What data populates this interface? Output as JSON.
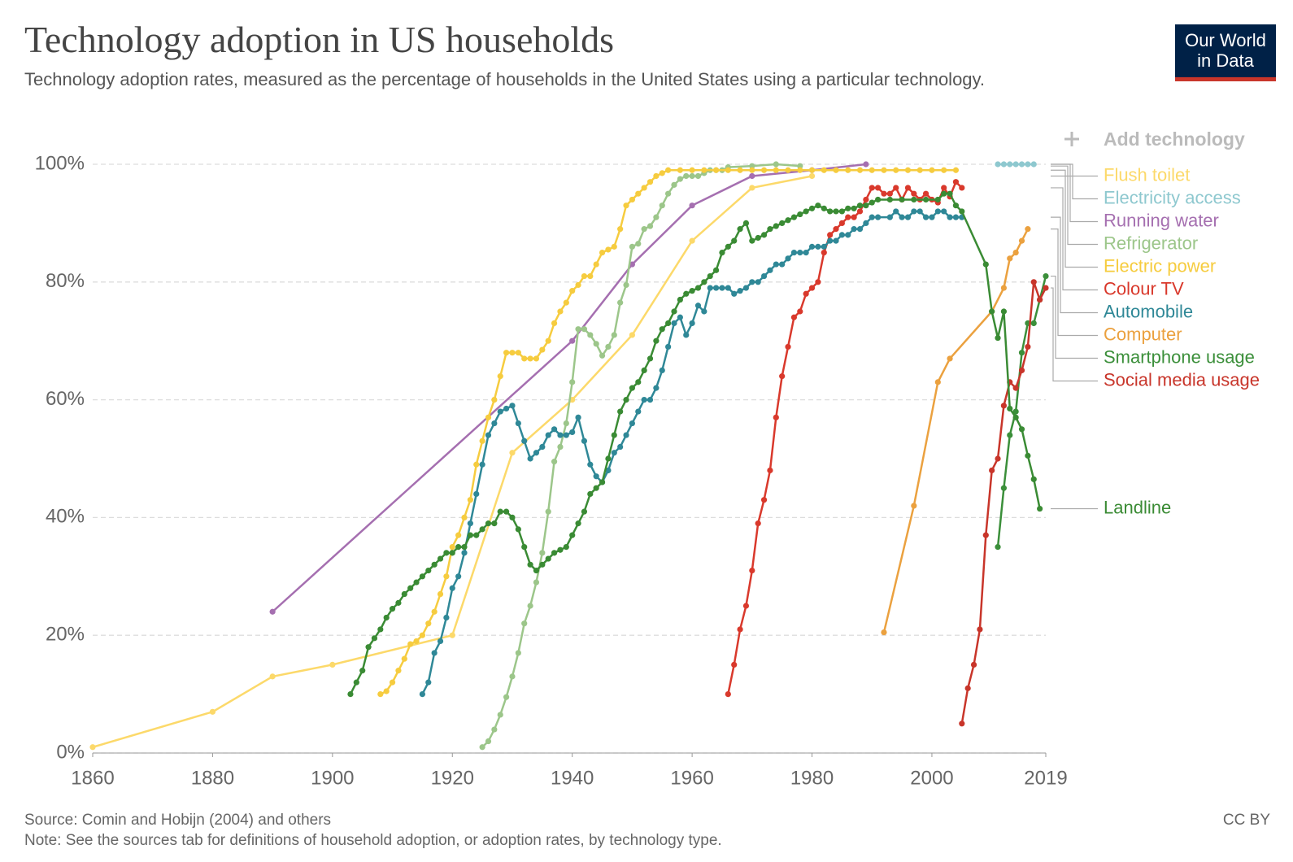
{
  "chart_data": {
    "type": "line",
    "title": "Technology adoption in US households",
    "subtitle": "Technology adoption rates, measured as the percentage of households in the United States using a particular technology.",
    "source": "Source: Comin and Hobijn (2004) and others",
    "note": "Note: See the sources tab for definitions of household adoption, or adoption rates, by technology type.",
    "license": "CC BY",
    "add_button": "Add technology",
    "logo": [
      "Our World",
      "in Data"
    ],
    "xlim": [
      1860,
      2019
    ],
    "xticks": [
      1860,
      1880,
      1900,
      1920,
      1940,
      1960,
      1980,
      2000,
      2019
    ],
    "ylim": [
      0,
      100
    ],
    "yticks": [
      {
        "value": 0,
        "label": "0%"
      },
      {
        "value": 20,
        "label": "20%"
      },
      {
        "value": 40,
        "label": "40%"
      },
      {
        "value": 60,
        "label": "60%"
      },
      {
        "value": 80,
        "label": "80%"
      },
      {
        "value": 100,
        "label": "100%"
      }
    ],
    "grid": true,
    "series": [
      {
        "name": "Flush toilet",
        "color": "#fcd96a",
        "x": [
          1860,
          1880,
          1890,
          1900,
          1920,
          1930,
          1940,
          1950,
          1960,
          1970,
          1980
        ],
        "values": [
          1,
          7,
          13,
          15,
          20,
          51,
          60,
          71,
          87,
          96,
          98
        ]
      },
      {
        "name": "Electricity access",
        "color": "#8ec8cf",
        "x": [
          2011,
          2012,
          2013,
          2014,
          2015,
          2016,
          2017
        ],
        "values": [
          100,
          100,
          100,
          100,
          100,
          100,
          100
        ]
      },
      {
        "name": "Running water",
        "color": "#a56fb0",
        "x": [
          1890,
          1940,
          1950,
          1960,
          1970,
          1980,
          1989
        ],
        "values": [
          24,
          70,
          83,
          93,
          98,
          99,
          100
        ]
      },
      {
        "name": "Refrigerator",
        "color": "#9cc68a",
        "x": [
          1925,
          1926,
          1927,
          1928,
          1929,
          1930,
          1931,
          1932,
          1933,
          1934,
          1935,
          1936,
          1937,
          1938,
          1939,
          1940,
          1941,
          1942,
          1943,
          1944,
          1945,
          1946,
          1947,
          1948,
          1949,
          1950,
          1951,
          1952,
          1953,
          1954,
          1955,
          1956,
          1957,
          1958,
          1959,
          1960,
          1961,
          1962,
          1963,
          1964,
          1965,
          1966,
          1970,
          1974,
          1978
        ],
        "values": [
          1,
          2,
          4,
          6.5,
          9.5,
          13,
          17,
          22,
          25,
          29,
          34,
          41,
          49.5,
          52,
          56,
          63,
          72,
          72,
          71,
          69.5,
          67.5,
          69,
          71,
          76.5,
          79.5,
          86,
          86.5,
          89,
          89.5,
          91,
          93,
          95,
          96.5,
          97.5,
          98,
          98,
          98,
          98.5,
          99,
          99,
          99,
          99.5,
          99.7,
          100,
          99.7
        ]
      },
      {
        "name": "Electric power",
        "color": "#f6cc3f",
        "x": [
          1908,
          1909,
          1910,
          1911,
          1912,
          1913,
          1914,
          1915,
          1916,
          1917,
          1918,
          1919,
          1920,
          1921,
          1922,
          1923,
          1924,
          1925,
          1926,
          1927,
          1928,
          1929,
          1930,
          1931,
          1932,
          1933,
          1934,
          1935,
          1936,
          1937,
          1938,
          1939,
          1940,
          1941,
          1942,
          1943,
          1944,
          1945,
          1946,
          1947,
          1948,
          1949,
          1950,
          1951,
          1952,
          1953,
          1954,
          1955,
          1956,
          1958,
          1960,
          1962,
          1964,
          1966,
          1968,
          1970,
          1972,
          1974,
          1976,
          1978,
          1980,
          1982,
          1984,
          1986,
          1988,
          1990,
          1992,
          1994,
          1996,
          1998,
          2000,
          2002,
          2004
        ],
        "values": [
          10,
          10.5,
          12,
          14,
          16,
          18.5,
          19,
          20,
          22,
          24,
          27,
          30,
          35,
          37,
          40,
          43,
          49,
          53,
          57,
          60,
          64,
          68,
          68,
          68,
          67,
          67,
          67,
          68.5,
          70,
          73,
          75,
          76.5,
          78.5,
          79.5,
          81,
          81,
          83,
          85,
          85.5,
          86,
          89,
          93,
          94,
          95,
          96,
          97,
          98,
          98.5,
          99,
          99,
          99,
          99,
          99,
          99,
          99,
          99,
          99,
          99,
          99,
          99,
          99,
          99,
          99,
          99,
          99,
          99,
          99,
          99,
          99,
          99,
          99,
          99,
          99
        ]
      },
      {
        "name": "Colour TV",
        "color": "#d9392c",
        "x": [
          1966,
          1967,
          1968,
          1969,
          1970,
          1971,
          1972,
          1973,
          1974,
          1975,
          1976,
          1977,
          1978,
          1979,
          1980,
          1981,
          1982,
          1983,
          1984,
          1985,
          1986,
          1987,
          1988,
          1989,
          1990,
          1991,
          1992,
          1993,
          1994,
          1995,
          1996,
          1997,
          1998,
          1999,
          2000,
          2001,
          2002,
          2003,
          2004,
          2005
        ],
        "values": [
          10,
          15,
          21,
          25,
          31,
          39,
          43,
          48,
          57,
          64,
          69,
          74,
          75,
          78,
          79,
          80,
          85,
          88,
          89,
          90,
          91,
          91,
          92,
          94,
          96,
          96,
          95,
          95,
          96,
          94,
          96,
          95,
          94,
          95,
          94,
          93.5,
          96,
          94.5,
          97,
          96
        ]
      },
      {
        "name": "Automobile",
        "color": "#2f8897",
        "x": [
          1915,
          1916,
          1917,
          1918,
          1919,
          1920,
          1921,
          1922,
          1923,
          1924,
          1925,
          1926,
          1927,
          1928,
          1929,
          1930,
          1931,
          1932,
          1933,
          1934,
          1935,
          1936,
          1937,
          1938,
          1939,
          1940,
          1941,
          1942,
          1943,
          1944,
          1945,
          1946,
          1947,
          1948,
          1949,
          1950,
          1951,
          1952,
          1953,
          1954,
          1955,
          1956,
          1957,
          1958,
          1959,
          1960,
          1961,
          1962,
          1963,
          1964,
          1965,
          1966,
          1967,
          1968,
          1969,
          1970,
          1971,
          1972,
          1973,
          1974,
          1975,
          1976,
          1977,
          1978,
          1979,
          1980,
          1981,
          1982,
          1983,
          1984,
          1985,
          1986,
          1987,
          1988,
          1989,
          1990,
          1991,
          1993,
          1994,
          1995,
          1996,
          1997,
          1998,
          1999,
          2000,
          2001,
          2002,
          2003,
          2004,
          2005
        ],
        "values": [
          10,
          12,
          17,
          19,
          23,
          28,
          30,
          34,
          39,
          44,
          49,
          54,
          56,
          58,
          58.5,
          59,
          56,
          53,
          50,
          51,
          52,
          54,
          55,
          54,
          54,
          54.5,
          57,
          53,
          49,
          47,
          46,
          48,
          51,
          52,
          54,
          56,
          58,
          60,
          60,
          62,
          65,
          69,
          73,
          74,
          71,
          73,
          76,
          75,
          79,
          79,
          79,
          79,
          78,
          78.5,
          79,
          80,
          80,
          81,
          82,
          83,
          83,
          84,
          85,
          85,
          85,
          86,
          86,
          86,
          87,
          87,
          88,
          88,
          89,
          89,
          90,
          91,
          91,
          91,
          92,
          91,
          91,
          92,
          92,
          91,
          91,
          92,
          92,
          91,
          91,
          91
        ]
      },
      {
        "name": "Computer",
        "color": "#eba13f",
        "x": [
          1992,
          1997,
          2001,
          2003,
          2010,
          2012,
          2013,
          2014,
          2015,
          2016
        ],
        "values": [
          20.5,
          42,
          63,
          67,
          75,
          79,
          84,
          85,
          87,
          89
        ]
      },
      {
        "name": "Smartphone usage",
        "color": "#3b8f3a",
        "x": [
          2011,
          2012,
          2013,
          2014,
          2015,
          2016,
          2017,
          2018,
          2019
        ],
        "values": [
          35,
          45,
          54,
          58,
          68,
          73,
          73,
          77,
          81
        ]
      },
      {
        "name": "Social media usage",
        "color": "#c8352a",
        "x": [
          2005,
          2006,
          2007,
          2008,
          2009,
          2010,
          2011,
          2012,
          2013,
          2014,
          2015,
          2016,
          2017,
          2018,
          2019
        ],
        "values": [
          5,
          11,
          15,
          21,
          37,
          48,
          50,
          59,
          63,
          62,
          65,
          69,
          80,
          77,
          79
        ]
      },
      {
        "name": "Landline",
        "color": "#3a8b34",
        "x": [
          1903,
          1904,
          1905,
          1906,
          1907,
          1908,
          1909,
          1910,
          1911,
          1912,
          1913,
          1914,
          1915,
          1916,
          1917,
          1918,
          1919,
          1920,
          1921,
          1922,
          1923,
          1924,
          1925,
          1926,
          1927,
          1928,
          1929,
          1930,
          1931,
          1932,
          1933,
          1934,
          1935,
          1936,
          1937,
          1938,
          1939,
          1940,
          1941,
          1942,
          1943,
          1944,
          1945,
          1946,
          1947,
          1948,
          1949,
          1950,
          1951,
          1952,
          1953,
          1954,
          1955,
          1956,
          1957,
          1958,
          1959,
          1960,
          1961,
          1962,
          1963,
          1964,
          1965,
          1966,
          1967,
          1968,
          1969,
          1970,
          1971,
          1972,
          1973,
          1974,
          1975,
          1976,
          1977,
          1978,
          1979,
          1980,
          1981,
          1982,
          1983,
          1984,
          1985,
          1986,
          1987,
          1988,
          1989,
          1990,
          1991,
          1993,
          1995,
          1997,
          1999,
          2001,
          2002,
          2003,
          2004,
          2005,
          2009,
          2010,
          2011,
          2012,
          2013,
          2014,
          2015,
          2016,
          2017,
          2018
        ],
        "values": [
          10,
          12,
          14,
          18,
          19.5,
          21,
          23,
          24.5,
          25.5,
          27,
          28,
          29,
          30,
          31,
          32,
          33,
          34,
          34,
          35,
          35,
          37,
          37,
          38,
          39,
          39,
          41,
          41,
          40,
          38,
          35,
          32,
          31,
          32,
          33,
          34,
          34.5,
          35,
          37,
          39,
          41,
          44,
          45,
          46,
          50,
          54,
          58,
          60,
          62,
          63,
          65,
          67,
          70,
          72,
          73,
          75,
          77,
          78,
          78.5,
          79,
          80,
          81,
          82,
          85,
          86,
          87,
          89,
          90,
          87,
          87.5,
          88,
          89,
          89.5,
          90,
          90.5,
          91,
          91.5,
          92,
          92.5,
          93,
          92.5,
          92,
          92,
          92,
          92.5,
          92.5,
          93,
          93,
          93.5,
          94,
          94,
          94,
          94,
          94,
          94,
          95,
          95,
          93,
          92,
          83,
          75,
          70.5,
          75,
          58.5,
          57,
          55,
          50.5,
          46.5,
          41.5
        ]
      }
    ]
  }
}
